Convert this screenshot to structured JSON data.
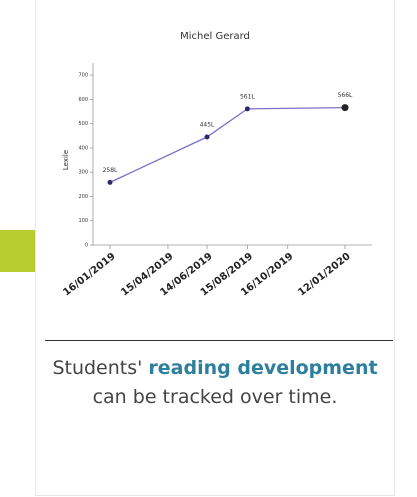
{
  "chart_data": {
    "type": "line",
    "title": "Michel Gerard",
    "y_label": "Lexile",
    "x": [
      "16/01/2019",
      "14/06/2019",
      "15/08/2019",
      "12/01/2020"
    ],
    "values": [
      258,
      445,
      561,
      566
    ],
    "value_labels": [
      "258L",
      "445L",
      "561L",
      "566L"
    ],
    "color": "#7b70c6",
    "marker_color": "#2b2a6a",
    "xlim": [
      "16/01/2019",
      "12/01/2020"
    ],
    "xticks": [
      "16/01/2019",
      "15/04/2019",
      "14/06/2019",
      "15/08/2019",
      "16/10/2019",
      "12/01/2020"
    ],
    "ylim": [
      0,
      750
    ],
    "yticks": [
      0,
      100,
      200,
      300,
      400,
      500,
      600,
      700
    ]
  },
  "caption": {
    "before": "Students' ",
    "bold": "reading development",
    "after": " can be tracked over time."
  }
}
